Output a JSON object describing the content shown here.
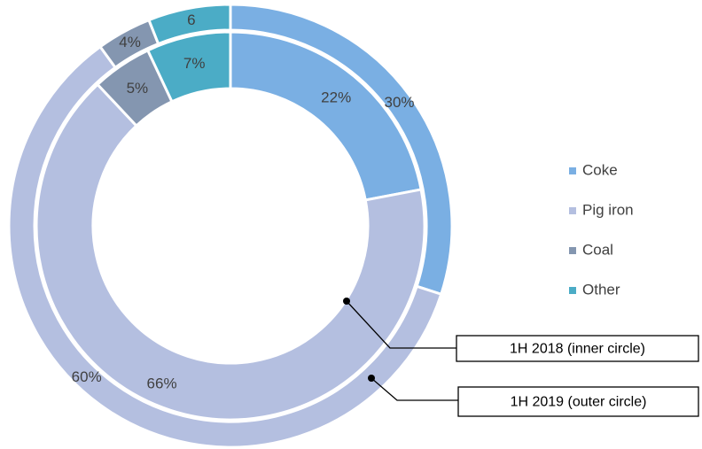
{
  "chart_data": {
    "type": "donut",
    "categories": [
      "Coke",
      "Pig iron",
      "Coal",
      "Other"
    ],
    "colors": [
      "#7aafe3",
      "#b4bfe0",
      "#8496b0",
      "#4bacc6"
    ],
    "series": [
      {
        "name": "1H 2018 (inner circle)",
        "values": [
          22,
          66,
          5,
          7
        ],
        "value_labels": [
          "22%",
          "66%",
          "5%",
          "7%"
        ]
      },
      {
        "name": "1H 2019 (outer circle)",
        "values": [
          30,
          60,
          4,
          6
        ],
        "value_labels": [
          "30%",
          "60%",
          "4%",
          "6"
        ]
      }
    ],
    "legend": "right"
  }
}
